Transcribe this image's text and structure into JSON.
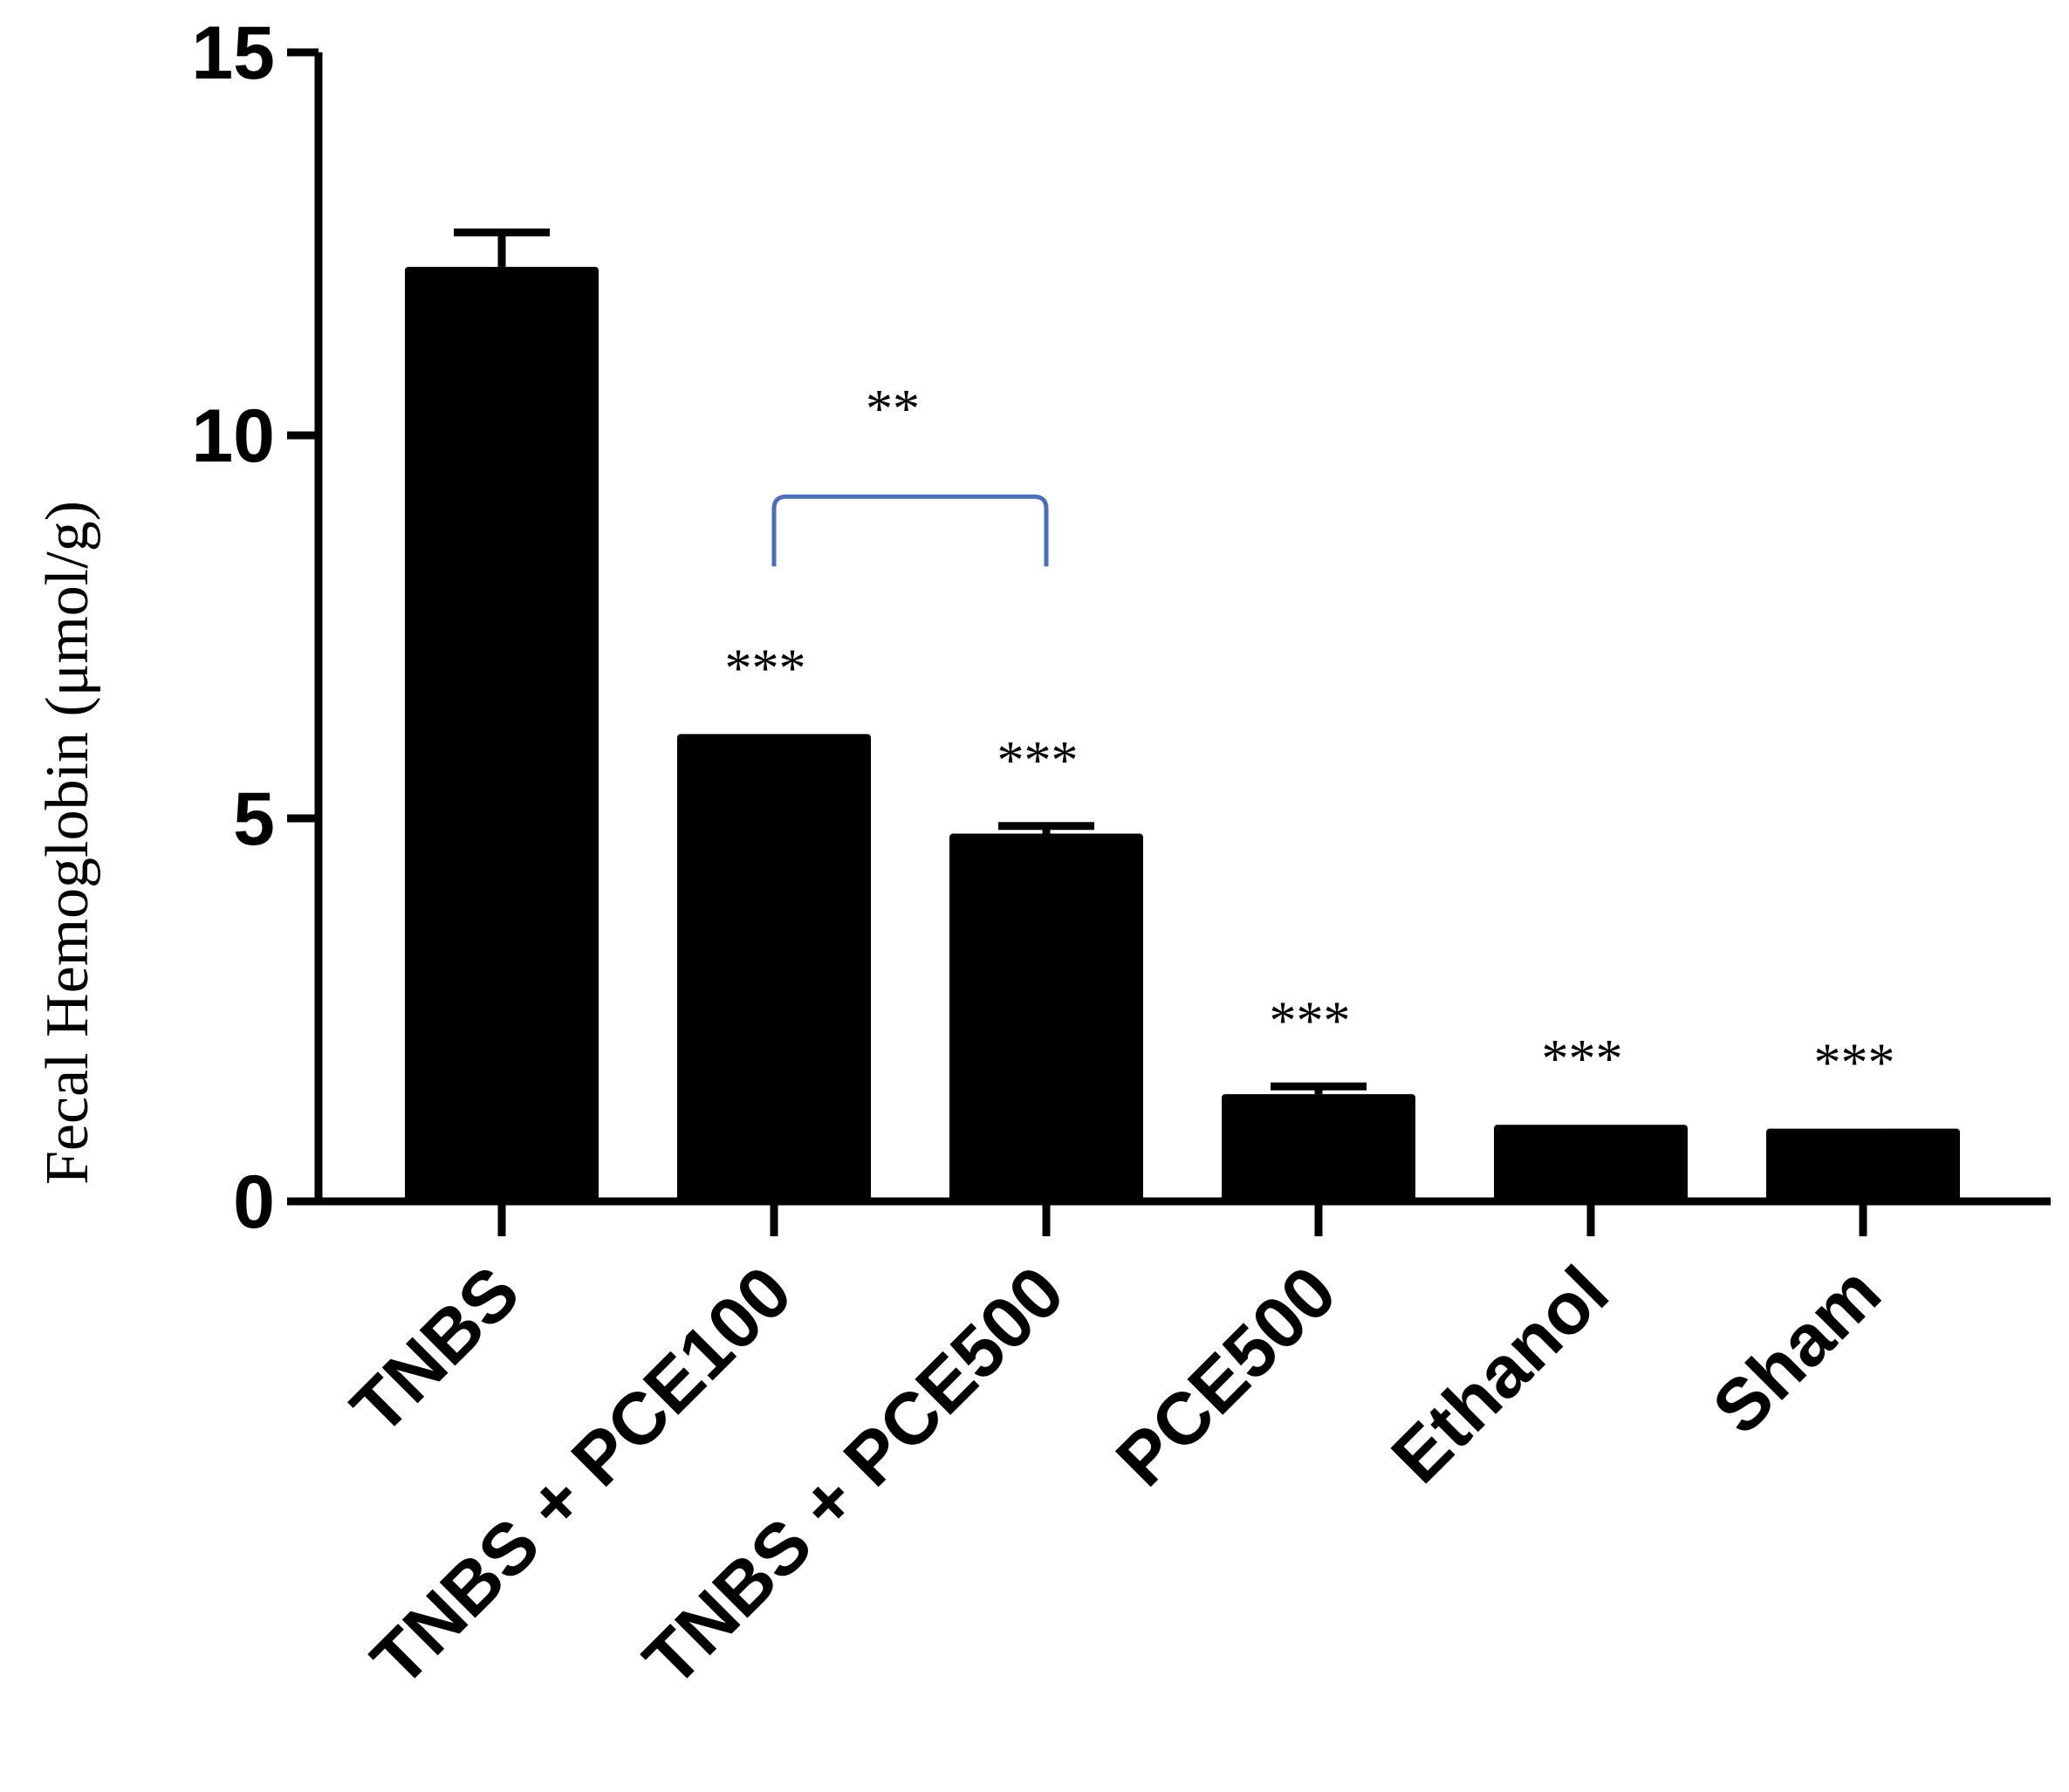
{
  "chart_data": {
    "type": "bar",
    "title": "",
    "xlabel": "",
    "ylabel": "Fecal Hemoglobin (μmol/g)",
    "ylim": [
      0,
      15
    ],
    "yticks": [
      0,
      5,
      10,
      15
    ],
    "categories": [
      "TNBS",
      "TNBS + PCE100",
      "TNBS + PCE500",
      "PCE500",
      "Ethanol",
      "Sham"
    ],
    "values": [
      12.2,
      6.1,
      4.8,
      1.4,
      1.0,
      0.95
    ],
    "error_upper": [
      0.45,
      0.0,
      0.1,
      0.1,
      0.0,
      0.0
    ],
    "significance": [
      "",
      "***",
      "***",
      "***",
      "***",
      "***"
    ],
    "bracket": {
      "from": 1,
      "to": 2,
      "label": "**",
      "y": 9.2,
      "color": "#4a6fb5"
    },
    "bar_color": "#000000",
    "grid": false,
    "legend": "none"
  }
}
